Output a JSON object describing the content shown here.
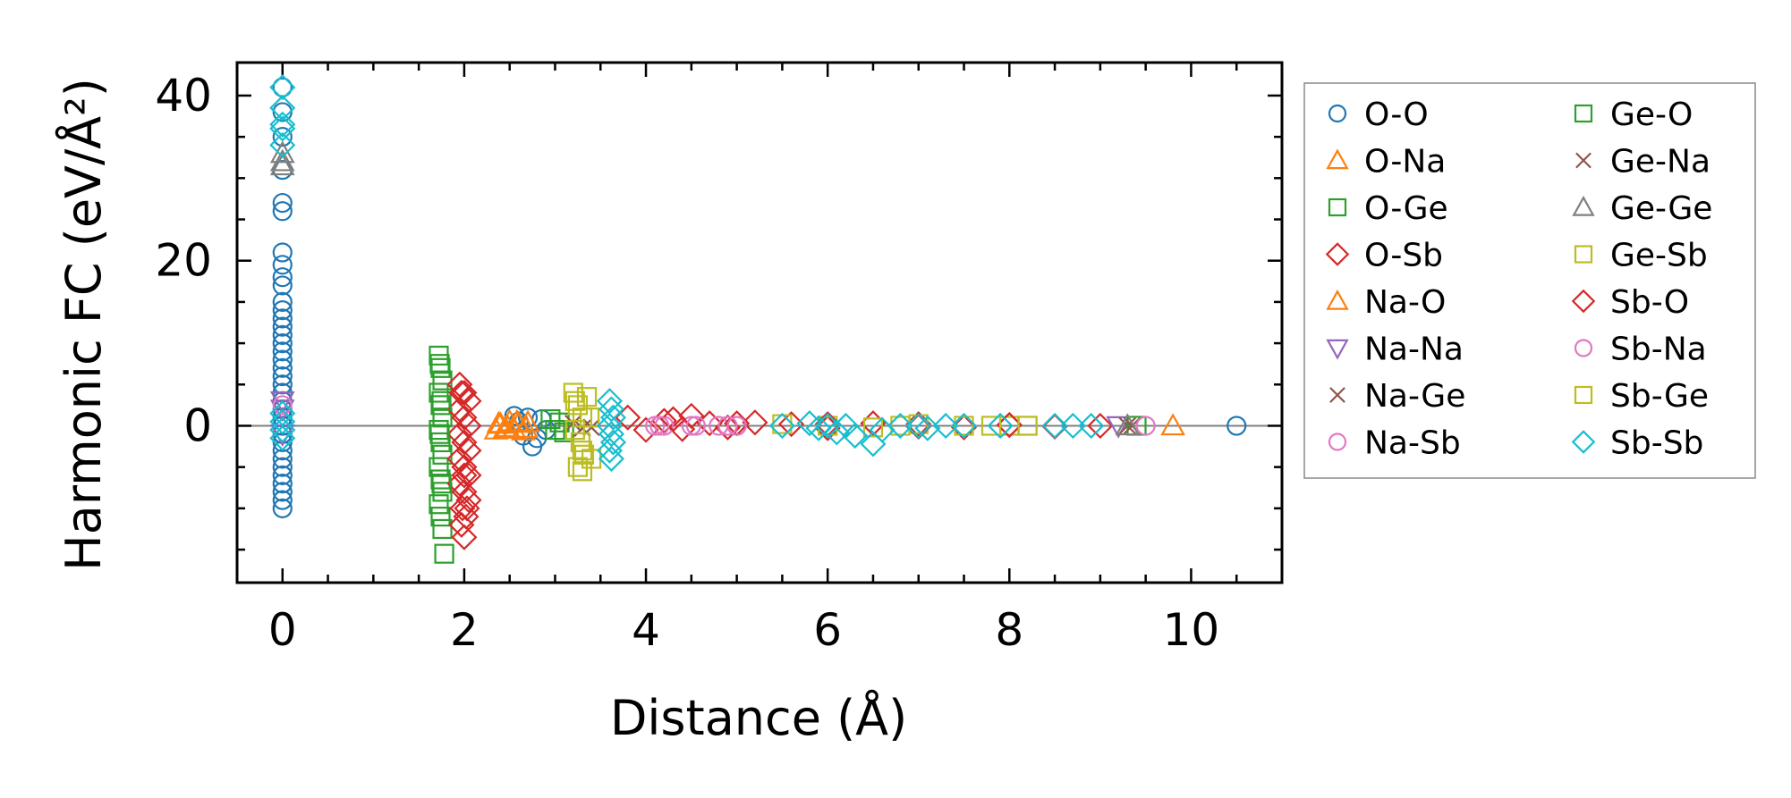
{
  "chart_data": {
    "type": "scatter",
    "xlabel": "Distance (Å)",
    "ylabel": "Harmonic FC (eV/Å²)",
    "xlim": [
      -0.5,
      11.0
    ],
    "ylim": [
      -19,
      44
    ],
    "xticks": [
      0,
      2,
      4,
      6,
      8,
      10
    ],
    "yticks": [
      0,
      20,
      40
    ],
    "zero_line": true,
    "legend_position": "outside-right",
    "series": [
      {
        "name": "O-O",
        "marker": "circle",
        "color": "#1f77b4",
        "points": [
          [
            0,
            41
          ],
          [
            0,
            38
          ],
          [
            0,
            35
          ],
          [
            0,
            31
          ],
          [
            0,
            27
          ],
          [
            0,
            26
          ],
          [
            0,
            21
          ],
          [
            0,
            19.5
          ],
          [
            0,
            18
          ],
          [
            0,
            17
          ],
          [
            0,
            15
          ],
          [
            0,
            14
          ],
          [
            0,
            13
          ],
          [
            0,
            12
          ],
          [
            0,
            11
          ],
          [
            0,
            10
          ],
          [
            0,
            9
          ],
          [
            0,
            8
          ],
          [
            0,
            7
          ],
          [
            0,
            6
          ],
          [
            0,
            5
          ],
          [
            0,
            4
          ],
          [
            0,
            3
          ],
          [
            0,
            2
          ],
          [
            0,
            1
          ],
          [
            0,
            0
          ],
          [
            0,
            -1
          ],
          [
            0,
            -2
          ],
          [
            0,
            -3
          ],
          [
            0,
            -4
          ],
          [
            0,
            -5
          ],
          [
            0,
            -6
          ],
          [
            0,
            -7
          ],
          [
            0,
            -8
          ],
          [
            0,
            -9
          ],
          [
            0,
            -10
          ],
          [
            2.55,
            1.2
          ],
          [
            2.6,
            0.5
          ],
          [
            2.65,
            -1.2
          ],
          [
            2.7,
            1.0
          ],
          [
            2.75,
            -2.5
          ],
          [
            2.8,
            -1.5
          ],
          [
            2.85,
            0.8
          ],
          [
            2.9,
            -0.5
          ],
          [
            10.5,
            0
          ]
        ]
      },
      {
        "name": "O-Na",
        "marker": "triangle-up",
        "color": "#ff7f0e",
        "points": [
          [
            2.35,
            -0.5
          ],
          [
            2.4,
            0.2
          ],
          [
            2.45,
            -0.3
          ],
          [
            2.5,
            0.5
          ],
          [
            2.55,
            -0.4
          ],
          [
            2.6,
            0.3
          ],
          [
            2.65,
            -0.6
          ],
          [
            2.7,
            0.4
          ],
          [
            9.8,
            0
          ]
        ]
      },
      {
        "name": "O-Ge",
        "marker": "square",
        "color": "#2ca02c",
        "points": [
          [
            1.72,
            8.5
          ],
          [
            1.74,
            7
          ],
          [
            1.76,
            5.5
          ],
          [
            1.72,
            4
          ],
          [
            1.74,
            2.5
          ],
          [
            1.76,
            1
          ],
          [
            1.72,
            -0.5
          ],
          [
            1.74,
            -2
          ],
          [
            1.76,
            -3.5
          ],
          [
            1.72,
            -5
          ],
          [
            1.74,
            -6.5
          ],
          [
            1.76,
            -8
          ],
          [
            1.72,
            -9.5
          ],
          [
            1.74,
            -11
          ],
          [
            1.76,
            -12.5
          ],
          [
            1.78,
            -15.5
          ],
          [
            2.95,
            0.8
          ],
          [
            3.0,
            -0.5
          ],
          [
            3.05,
            0.4
          ],
          [
            3.1,
            -0.8
          ]
        ]
      },
      {
        "name": "O-Sb",
        "marker": "diamond",
        "color": "#d62728",
        "points": [
          [
            1.95,
            5
          ],
          [
            2.0,
            4
          ],
          [
            2.05,
            3
          ],
          [
            1.95,
            2
          ],
          [
            2.0,
            1
          ],
          [
            2.05,
            0
          ],
          [
            1.95,
            -1
          ],
          [
            2.0,
            -2
          ],
          [
            2.05,
            -3
          ],
          [
            1.95,
            -4
          ],
          [
            2.0,
            -5
          ],
          [
            2.05,
            -6
          ],
          [
            1.95,
            -7
          ],
          [
            2.0,
            -8
          ],
          [
            2.05,
            -9
          ],
          [
            1.98,
            -10
          ],
          [
            2.02,
            -11
          ],
          [
            1.97,
            -12
          ],
          [
            2.0,
            -13.5
          ],
          [
            3.8,
            1
          ],
          [
            4.0,
            -0.5
          ],
          [
            4.2,
            0.6
          ],
          [
            4.4,
            -0.4
          ],
          [
            4.5,
            1.2
          ],
          [
            4.7,
            0.3
          ],
          [
            4.9,
            -0.2
          ],
          [
            5.2,
            0.4
          ],
          [
            5.6,
            0.2
          ],
          [
            6.0,
            -0.3
          ],
          [
            6.5,
            0.3
          ],
          [
            7.0,
            0.2
          ],
          [
            7.5,
            -0.2
          ],
          [
            8.0,
            0.1
          ],
          [
            8.5,
            -0.1
          ],
          [
            9.0,
            0
          ]
        ]
      },
      {
        "name": "Na-O",
        "marker": "triangle-up",
        "color": "#ff7f0e",
        "points": [
          [
            2.38,
            0.3
          ],
          [
            2.48,
            -0.2
          ],
          [
            2.58,
            0.5
          ],
          [
            2.68,
            -0.3
          ]
        ]
      },
      {
        "name": "Na-Na",
        "marker": "triangle-down",
        "color": "#9467bd",
        "points": [
          [
            0,
            3
          ],
          [
            0,
            2
          ],
          [
            0,
            -1
          ],
          [
            9.2,
            0
          ]
        ]
      },
      {
        "name": "Na-Ge",
        "marker": "x",
        "color": "#8c564b",
        "points": [
          [
            3.2,
            0.3
          ],
          [
            3.4,
            -0.2
          ],
          [
            9.3,
            0
          ]
        ]
      },
      {
        "name": "Na-Sb",
        "marker": "circle",
        "color": "#e377c2",
        "points": [
          [
            0,
            2.5
          ],
          [
            4.1,
            0
          ],
          [
            4.2,
            0
          ],
          [
            4.5,
            0
          ],
          [
            4.8,
            0
          ],
          [
            5.0,
            0
          ]
        ]
      },
      {
        "name": "Ge-O",
        "marker": "square",
        "color": "#2ca02c",
        "points": [
          [
            1.73,
            7.5
          ],
          [
            1.75,
            3
          ],
          [
            1.73,
            -1
          ],
          [
            1.75,
            -7
          ],
          [
            9.4,
            0
          ]
        ]
      },
      {
        "name": "Ge-Na",
        "marker": "x",
        "color": "#8c564b",
        "points": [
          [
            3.3,
            -0.3
          ],
          [
            9.35,
            0
          ]
        ]
      },
      {
        "name": "Ge-Ge",
        "marker": "triangle-up",
        "color": "#7f7f7f",
        "points": [
          [
            0,
            33
          ],
          [
            0,
            32
          ],
          [
            0,
            31.5
          ],
          [
            9.3,
            0
          ]
        ]
      },
      {
        "name": "Ge-Sb",
        "marker": "square",
        "color": "#bcbd22",
        "points": [
          [
            3.2,
            4
          ],
          [
            3.25,
            2.5
          ],
          [
            3.3,
            1
          ],
          [
            3.22,
            -0.5
          ],
          [
            3.28,
            -2
          ],
          [
            3.32,
            -3.5
          ],
          [
            3.25,
            -5
          ],
          [
            3.3,
            -5.5
          ],
          [
            3.35,
            3.5
          ],
          [
            3.4,
            -4
          ],
          [
            5.5,
            0.2
          ],
          [
            6.0,
            0
          ],
          [
            6.5,
            -0.2
          ],
          [
            7.0,
            0.2
          ],
          [
            7.5,
            0
          ],
          [
            8.0,
            0
          ],
          [
            8.2,
            0
          ]
        ]
      },
      {
        "name": "Sb-O",
        "marker": "diamond",
        "color": "#d62728",
        "points": [
          [
            1.97,
            4
          ],
          [
            2.0,
            -6
          ],
          [
            2.03,
            -10
          ],
          [
            4.3,
            0.8
          ],
          [
            5.0,
            0.3
          ],
          [
            6.0,
            0.2
          ],
          [
            7.0,
            -0.1
          ],
          [
            8.0,
            0.1
          ]
        ]
      },
      {
        "name": "Sb-Na",
        "marker": "circle",
        "color": "#e377c2",
        "points": [
          [
            4.15,
            0
          ],
          [
            4.55,
            0
          ],
          [
            4.9,
            0
          ],
          [
            5.0,
            0
          ],
          [
            9.5,
            0
          ]
        ]
      },
      {
        "name": "Sb-Ge",
        "marker": "square",
        "color": "#bcbd22",
        "points": [
          [
            3.22,
            3
          ],
          [
            3.3,
            -3
          ],
          [
            3.38,
            1
          ],
          [
            6.8,
            0
          ],
          [
            7.8,
            0
          ],
          [
            8.2,
            0
          ]
        ]
      },
      {
        "name": "Sb-Sb",
        "marker": "diamond",
        "color": "#17becf",
        "points": [
          [
            0,
            41
          ],
          [
            0,
            38.5
          ],
          [
            0,
            36.5
          ],
          [
            0,
            36
          ],
          [
            0,
            34
          ],
          [
            0,
            1.5
          ],
          [
            0,
            0.5
          ],
          [
            0,
            -0.5
          ],
          [
            0,
            -1.5
          ],
          [
            3.6,
            3
          ],
          [
            3.62,
            2
          ],
          [
            3.64,
            1
          ],
          [
            3.6,
            0
          ],
          [
            3.62,
            -1
          ],
          [
            3.64,
            -2
          ],
          [
            3.6,
            -3
          ],
          [
            3.62,
            -4
          ],
          [
            5.5,
            0
          ],
          [
            5.8,
            0.3
          ],
          [
            5.9,
            -0.3
          ],
          [
            6.0,
            0
          ],
          [
            6.1,
            -0.8
          ],
          [
            6.2,
            0
          ],
          [
            6.3,
            -1.2
          ],
          [
            6.5,
            -2.2
          ],
          [
            6.6,
            -0.5
          ],
          [
            6.8,
            0
          ],
          [
            7.0,
            0
          ],
          [
            7.1,
            -0.3
          ],
          [
            7.3,
            0
          ],
          [
            7.5,
            0
          ],
          [
            7.9,
            0
          ],
          [
            8.5,
            0
          ],
          [
            8.7,
            0
          ],
          [
            8.9,
            0
          ]
        ]
      }
    ]
  }
}
